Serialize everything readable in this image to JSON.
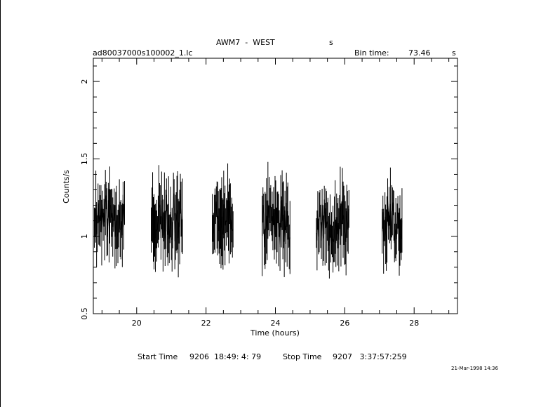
{
  "chart_data": {
    "type": "line",
    "title": "AWM7  -  WEST",
    "title_suffix": "s",
    "file_label": "ad80037000s100002_1.lc",
    "bin_time_label": "Bin time:",
    "bin_time_value": "73.46",
    "bin_time_unit": "s",
    "xlabel": "Time (hours)",
    "ylabel": "Counts/s",
    "xlim": [
      18.75,
      29.25
    ],
    "ylim": [
      0.5,
      2.15
    ],
    "x_ticks": [
      "20",
      "22",
      "24",
      "26",
      "28"
    ],
    "y_ticks": [
      "0.5",
      "1",
      "1.5",
      "2"
    ],
    "grid": false,
    "segments": [
      {
        "x_start": 18.78,
        "x_end": 19.65,
        "mean": 1.13,
        "spread": 0.22,
        "n": 42,
        "seed": 11
      },
      {
        "x_start": 20.42,
        "x_end": 21.32,
        "mean": 1.12,
        "spread": 0.24,
        "n": 46,
        "seed": 23
      },
      {
        "x_start": 22.18,
        "x_end": 22.78,
        "mean": 1.15,
        "spread": 0.22,
        "n": 32,
        "seed": 37
      },
      {
        "x_start": 23.62,
        "x_end": 24.42,
        "mean": 1.08,
        "spread": 0.24,
        "n": 40,
        "seed": 41
      },
      {
        "x_start": 25.18,
        "x_end": 26.12,
        "mean": 1.1,
        "spread": 0.25,
        "n": 46,
        "seed": 53
      },
      {
        "x_start": 27.08,
        "x_end": 27.65,
        "mean": 1.1,
        "spread": 0.22,
        "n": 30,
        "seed": 67
      }
    ]
  },
  "footer": {
    "start_label": "Start Time",
    "start_value": "9206  18:49: 4: 79",
    "stop_label": "Stop Time",
    "stop_value": "9207   3:37:57:259",
    "timestamp": "21-Mar-1998 14:36"
  }
}
